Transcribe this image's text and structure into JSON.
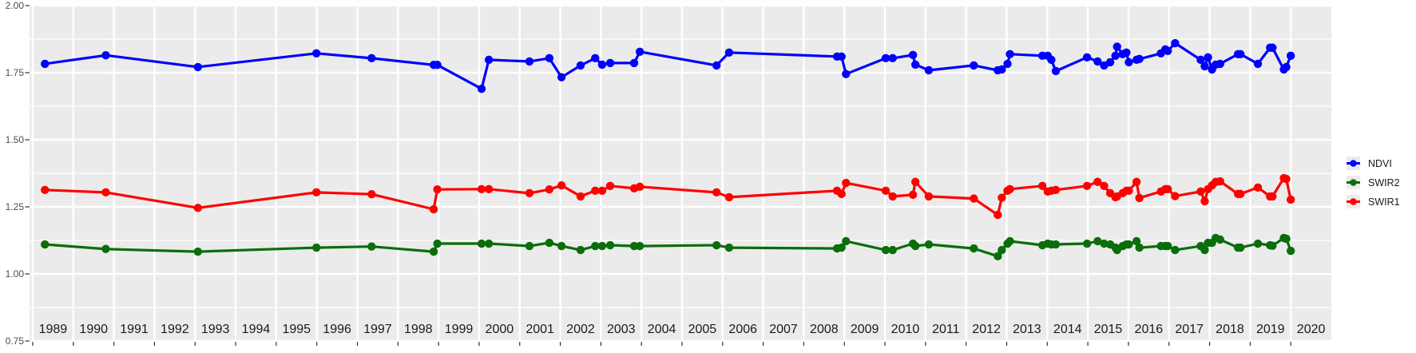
{
  "figure": {
    "background": "#FFFFFF",
    "panel_background": "#EBEBEB",
    "grid_color": "#FFFFFF",
    "tick_color": "#333333",
    "axis_text_color": "#4D4D4D",
    "year_label_color": "#1A1A1A"
  },
  "chart_data": {
    "type": "line",
    "title": "",
    "xlabel": "",
    "ylabel": "",
    "grid": "on",
    "legend_position": "right",
    "x_domain": [
      1988.92,
      2021.0
    ],
    "y_domain": [
      0.75,
      2.0
    ],
    "y_ticks": [
      0.75,
      1.0,
      1.25,
      1.5,
      1.75,
      2.0
    ],
    "y_tick_labels": [
      "0.75",
      "1.00",
      "1.25",
      "1.50",
      "1.75",
      "2.00"
    ],
    "y_minor_gridlines": [
      0.875,
      1.125,
      1.375,
      1.625,
      1.875
    ],
    "x_gridline_years": [
      1989,
      1990,
      1991,
      1992,
      1993,
      1994,
      1995,
      1996,
      1997,
      1998,
      1999,
      2000,
      2001,
      2002,
      2003,
      2004,
      2005,
      2006,
      2007,
      2008,
      2009,
      2010,
      2011,
      2012,
      2013,
      2014,
      2015,
      2016,
      2017,
      2018,
      2019,
      2020
    ],
    "year_labels": [
      "1989",
      "1990",
      "1991",
      "1992",
      "1993",
      "1994",
      "1995",
      "1996",
      "1997",
      "1998",
      "1999",
      "2000",
      "2001",
      "2002",
      "2003",
      "2004",
      "2005",
      "2006",
      "2007",
      "2008",
      "2009",
      "2010",
      "2011",
      "2012",
      "2013",
      "2014",
      "2015",
      "2016",
      "2017",
      "2018",
      "2019",
      "2020"
    ],
    "x": [
      1989.3,
      1990.8,
      1993.07,
      1995.99,
      1997.35,
      1998.88,
      1998.97,
      2000.06,
      2000.24,
      2001.24,
      2001.73,
      2002.03,
      2002.5,
      2002.86,
      2003.03,
      2003.23,
      2003.82,
      2003.96,
      2005.85,
      2006.16,
      2008.82,
      2008.93,
      2009.04,
      2010.02,
      2010.19,
      2010.69,
      2010.75,
      2011.08,
      2012.19,
      2012.78,
      2012.88,
      2013.02,
      2013.08,
      2013.88,
      2014.01,
      2014.1,
      2014.21,
      2014.98,
      2015.24,
      2015.4,
      2015.55,
      2015.68,
      2015.72,
      2015.86,
      2015.95,
      2016.01,
      2016.2,
      2016.27,
      2016.8,
      2016.91,
      2016.97,
      2017.15,
      2017.78,
      2017.88,
      2017.96,
      2018.06,
      2018.15,
      2018.26,
      2018.7,
      2018.76,
      2019.19,
      2019.49,
      2019.55,
      2019.83,
      2019.89,
      2020.0
    ],
    "series": [
      {
        "name": "NDVI",
        "color": "#0000FF",
        "values": [
          1.783,
          1.815,
          1.771,
          1.822,
          1.804,
          1.779,
          1.779,
          1.69,
          1.798,
          1.792,
          1.804,
          1.733,
          1.777,
          1.804,
          1.78,
          1.786,
          1.786,
          1.828,
          1.777,
          1.825,
          1.81,
          1.81,
          1.745,
          1.804,
          1.804,
          1.816,
          1.78,
          1.759,
          1.777,
          1.759,
          1.762,
          1.783,
          1.819,
          1.813,
          1.813,
          1.798,
          1.756,
          1.807,
          1.792,
          1.777,
          1.789,
          1.813,
          1.847,
          1.819,
          1.825,
          1.789,
          1.798,
          1.801,
          1.822,
          1.837,
          1.831,
          1.86,
          1.798,
          1.774,
          1.807,
          1.762,
          1.78,
          1.783,
          1.819,
          1.819,
          1.783,
          1.843,
          1.843,
          1.762,
          1.771,
          1.813
        ]
      },
      {
        "name": "SWIR2",
        "color": "#0A6E0A",
        "values": [
          1.11,
          1.093,
          1.083,
          1.098,
          1.102,
          1.083,
          1.113,
          1.113,
          1.113,
          1.104,
          1.116,
          1.104,
          1.089,
          1.104,
          1.104,
          1.107,
          1.104,
          1.104,
          1.107,
          1.098,
          1.095,
          1.098,
          1.122,
          1.089,
          1.089,
          1.113,
          1.104,
          1.11,
          1.095,
          1.066,
          1.089,
          1.113,
          1.122,
          1.107,
          1.113,
          1.11,
          1.11,
          1.113,
          1.122,
          1.113,
          1.11,
          1.098,
          1.089,
          1.104,
          1.11,
          1.11,
          1.122,
          1.098,
          1.104,
          1.104,
          1.104,
          1.089,
          1.104,
          1.089,
          1.116,
          1.116,
          1.134,
          1.128,
          1.098,
          1.098,
          1.113,
          1.107,
          1.105,
          1.134,
          1.131,
          1.086
        ]
      },
      {
        "name": "SWIR1",
        "color": "#FF0000",
        "values": [
          1.313,
          1.304,
          1.246,
          1.304,
          1.297,
          1.241,
          1.315,
          1.316,
          1.316,
          1.301,
          1.315,
          1.33,
          1.289,
          1.31,
          1.31,
          1.328,
          1.319,
          1.325,
          1.304,
          1.286,
          1.31,
          1.298,
          1.339,
          1.31,
          1.289,
          1.295,
          1.343,
          1.289,
          1.281,
          1.22,
          1.284,
          1.31,
          1.316,
          1.328,
          1.307,
          1.31,
          1.313,
          1.328,
          1.343,
          1.328,
          1.301,
          1.286,
          1.289,
          1.301,
          1.31,
          1.31,
          1.343,
          1.283,
          1.307,
          1.316,
          1.316,
          1.29,
          1.307,
          1.271,
          1.316,
          1.33,
          1.343,
          1.345,
          1.298,
          1.298,
          1.322,
          1.289,
          1.289,
          1.357,
          1.354,
          1.277
        ]
      }
    ],
    "legend_order": [
      "NDVI",
      "SWIR2",
      "SWIR1"
    ]
  }
}
